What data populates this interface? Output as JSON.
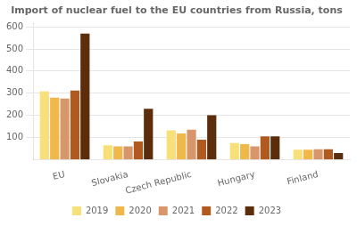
{
  "chart_data": {
    "type": "bar",
    "title": "Import of nuclear fuel to the EU countries from Russia, tons",
    "categories": [
      "EU",
      "Slovakia",
      "Czech Republic",
      "Hungary",
      "Finland"
    ],
    "series": [
      {
        "name": "2019",
        "color": "#F7E07A",
        "values": [
          308,
          65,
          132,
          75,
          45
        ]
      },
      {
        "name": "2020",
        "color": "#F0B84A",
        "values": [
          280,
          60,
          118,
          70,
          45
        ]
      },
      {
        "name": "2021",
        "color": "#D8976A",
        "values": [
          276,
          60,
          135,
          60,
          47
        ]
      },
      {
        "name": "2022",
        "color": "#B05A20",
        "values": [
          312,
          82,
          90,
          105,
          47
        ]
      },
      {
        "name": "2023",
        "color": "#5C2D0A",
        "values": [
          570,
          230,
          200,
          105,
          30
        ]
      }
    ],
    "ylim": [
      0,
      620
    ],
    "yticks": [
      100,
      200,
      300,
      400,
      500,
      600
    ],
    "grid": true,
    "legend": "bottom"
  }
}
